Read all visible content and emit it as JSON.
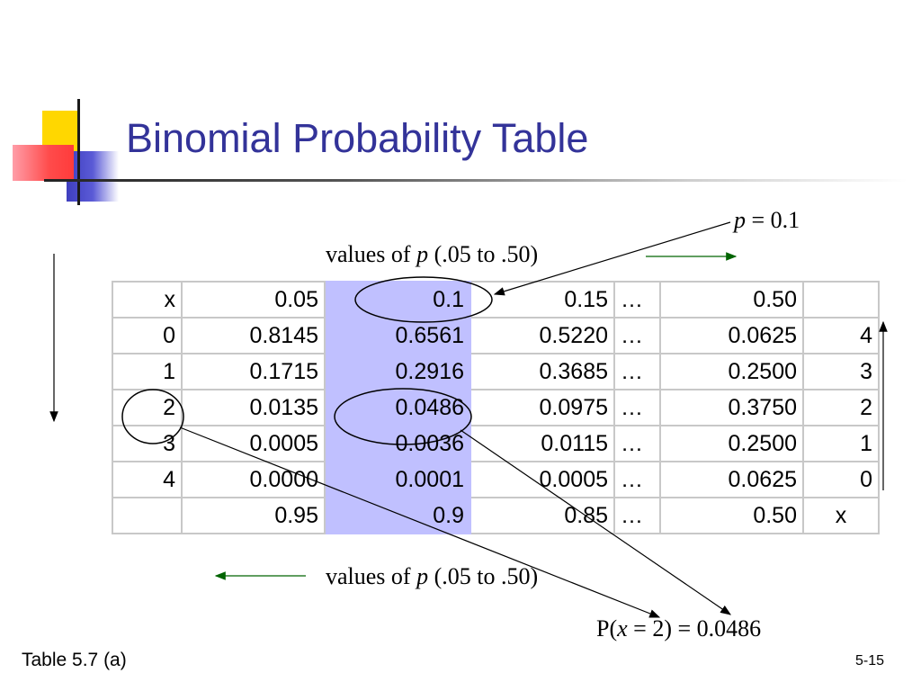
{
  "title": "Binomial Probability Table",
  "p_label": {
    "var": "p",
    "eq": " = 0.1"
  },
  "values_caption": {
    "prefix": "values of ",
    "var": "p",
    "suffix": " (.05 to .50)"
  },
  "probability": {
    "prefix": "P(",
    "var": "x",
    "suffix": " = 2) = 0.0486"
  },
  "footer_left": "Table 5.7 (a)",
  "footer_right": "5-15",
  "table": {
    "header": [
      "x",
      "0.05",
      "0.1",
      "0.15",
      "…",
      "0.50",
      ""
    ],
    "rows": [
      [
        "0",
        "0.8145",
        "0.6561",
        "0.5220",
        "…",
        "0.0625",
        "4"
      ],
      [
        "1",
        "0.1715",
        "0.2916",
        "0.3685",
        "…",
        "0.2500",
        "3"
      ],
      [
        "2",
        "0.0135",
        "0.0486",
        "0.0975",
        "…",
        "0.3750",
        "2"
      ],
      [
        "3",
        "0.0005",
        "0.0036",
        "0.0115",
        "…",
        "0.2500",
        "1"
      ],
      [
        "4",
        "0.0000",
        "0.0001",
        "0.0005",
        "…",
        "0.0625",
        "0"
      ]
    ],
    "footer": [
      "",
      "0.95",
      "0.9",
      "0.85",
      "…",
      "0.50",
      "x"
    ],
    "highlight_color": "#c0c0ff"
  },
  "colors": {
    "title": "#333399",
    "arrow_green": "#006400",
    "logo_yellow": "#ffd700",
    "logo_red": "#ff4b4b",
    "logo_blue": "#3f3fbf"
  }
}
